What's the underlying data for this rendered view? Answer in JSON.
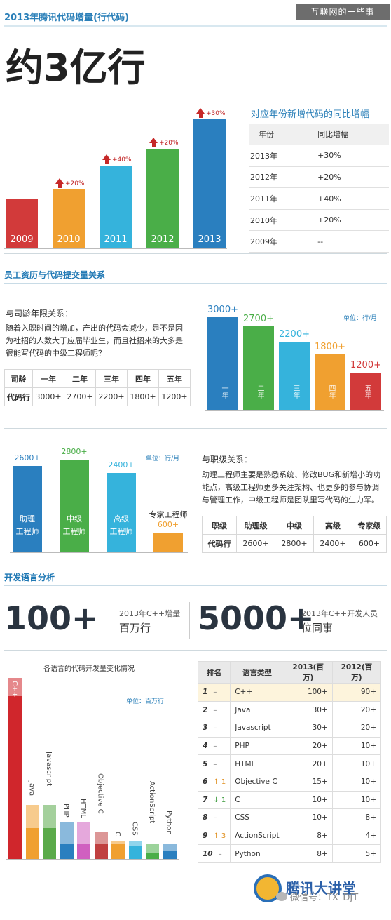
{
  "watermark": "互联网的一些事",
  "header": {
    "title": "2013年腾讯代码增量(行代码)",
    "headline": "约3亿行"
  },
  "growth": {
    "years": [
      "2009",
      "2010",
      "2011",
      "2012",
      "2013"
    ],
    "rates": [
      "",
      "+20%",
      "+40%",
      "+20%",
      "+30%"
    ],
    "colors": [
      "#d23a3a",
      "#f0a030",
      "#35b3dc",
      "#4aae48",
      "#2a7fbf"
    ],
    "table": {
      "title": "对应年份新增代码的同比增幅",
      "col_year": "年份",
      "col_rate": "同比增幅",
      "rows": [
        [
          "2013年",
          "+30%"
        ],
        [
          "2012年",
          "+20%"
        ],
        [
          "2011年",
          "+40%"
        ],
        [
          "2010年",
          "+20%"
        ],
        [
          "2009年",
          "--"
        ]
      ]
    }
  },
  "seniority": {
    "section_title": "员工资历与代码提交量关系",
    "subtitle": "与司龄年限关系：",
    "desc": "随着入职时间的增加，产出的代码会减少，是不是因为社招的人数大于应届毕业生，而且社招来的大多是很能写代码的中级工程师呢？",
    "unit": "单位：行/月",
    "table_head": [
      "司龄",
      "一年",
      "二年",
      "三年",
      "四年",
      "五年"
    ],
    "table_row": [
      "代码行",
      "3000+",
      "2700+",
      "2200+",
      "1800+",
      "1200+"
    ],
    "bars": [
      {
        "label": "3000+",
        "name": "一年",
        "value": 3000,
        "color": "#2a7fbf"
      },
      {
        "label": "2700+",
        "name": "二年",
        "value": 2700,
        "color": "#4aae48"
      },
      {
        "label": "2200+",
        "name": "三年",
        "value": 2200,
        "color": "#35b3dc"
      },
      {
        "label": "1800+",
        "name": "四年",
        "value": 1800,
        "color": "#f0a030"
      },
      {
        "label": "1200+",
        "name": "五年",
        "value": 1200,
        "color": "#d23a3a"
      }
    ]
  },
  "rank": {
    "subtitle": "与职级关系：",
    "desc": "助理工程师主要是熟悉系统、修改BUG和新增小的功能点，高级工程师更多关注架构、也更多的参与协调与管理工作，中级工程师是团队里写代码的生力军。",
    "unit": "单位：行/月",
    "table_head": [
      "职级",
      "助理级",
      "中级",
      "高级",
      "专家级"
    ],
    "table_row": [
      "代码行",
      "2600+",
      "2800+",
      "2400+",
      "600+"
    ],
    "bars": [
      {
        "label": "2600+",
        "name1": "助理",
        "name2": "工程师",
        "value": 2600,
        "color": "#2a7fbf"
      },
      {
        "label": "2800+",
        "name1": "中级",
        "name2": "工程师",
        "value": 2800,
        "color": "#4aae48"
      },
      {
        "label": "2400+",
        "name1": "高级",
        "name2": "工程师",
        "value": 2400,
        "color": "#35b3dc"
      },
      {
        "label": "600+",
        "name1": "专家工程师",
        "name2": "",
        "value": 600,
        "color": "#f0a030"
      }
    ]
  },
  "lang": {
    "section_title": "开发语言分析",
    "stat1_num": "100+",
    "stat1_a": "2013年C++增量",
    "stat1_b": "百万行",
    "stat2_num": "5000+",
    "stat2_a": "2013年C++开发人员",
    "stat2_b": "位同事",
    "chart_title": "各语言的代码开发量变化情况",
    "unit": "单位：百万行",
    "table_head": [
      "排名",
      "语言类型",
      "2013(百万)",
      "2012(百万)"
    ],
    "rows": [
      {
        "rank": "1",
        "chg": "–",
        "dir": "",
        "lang": "C++",
        "v2013": "100+",
        "v2012": "90+"
      },
      {
        "rank": "2",
        "chg": "–",
        "dir": "",
        "lang": "Java",
        "v2013": "30+",
        "v2012": "20+"
      },
      {
        "rank": "3",
        "chg": "–",
        "dir": "",
        "lang": "Javascript",
        "v2013": "30+",
        "v2012": "20+"
      },
      {
        "rank": "4",
        "chg": "–",
        "dir": "",
        "lang": "PHP",
        "v2013": "20+",
        "v2012": "10+"
      },
      {
        "rank": "5",
        "chg": "–",
        "dir": "",
        "lang": "HTML",
        "v2013": "20+",
        "v2012": "10+"
      },
      {
        "rank": "6",
        "chg": "↑ 1",
        "dir": "up",
        "lang": "Objective C",
        "v2013": "15+",
        "v2012": "10+"
      },
      {
        "rank": "7",
        "chg": "↓ 1",
        "dir": "down",
        "lang": "C",
        "v2013": "10+",
        "v2012": "10+"
      },
      {
        "rank": "8",
        "chg": "–",
        "dir": "",
        "lang": "CSS",
        "v2013": "10+",
        "v2012": "8+"
      },
      {
        "rank": "9",
        "chg": "↑ 3",
        "dir": "up",
        "lang": "ActionScript",
        "v2013": "8+",
        "v2012": "4+"
      },
      {
        "rank": "10",
        "chg": "–",
        "dir": "",
        "lang": "Python",
        "v2013": "8+",
        "v2012": "5+"
      }
    ]
  },
  "footer": {
    "logo": "腾讯大讲堂",
    "wechat": "微信号：TX_DJT"
  },
  "chart_data": [
    {
      "type": "bar",
      "categories": [
        "2009",
        "2010",
        "2011",
        "2012",
        "2013"
      ],
      "values": [
        100,
        120,
        168,
        201.6,
        262.1
      ],
      "annotations": [
        "",
        "+20%",
        "+40%",
        "+20%",
        "+30%"
      ]
    },
    {
      "type": "bar",
      "categories": [
        "一年",
        "二年",
        "三年",
        "四年",
        "五年"
      ],
      "values": [
        3000,
        2700,
        2200,
        1800,
        1200
      ],
      "ylabel": "单位：行/月"
    },
    {
      "type": "bar",
      "categories": [
        "助理工程师",
        "中级工程师",
        "高级工程师",
        "专家工程师"
      ],
      "values": [
        2600,
        2800,
        2400,
        600
      ],
      "ylabel": "单位：行/月"
    },
    {
      "type": "bar",
      "title": "各语言的代码开发量变化情况",
      "ylabel": "单位：百万行",
      "categories": [
        "C++",
        "Java",
        "Javascript",
        "PHP",
        "HTML",
        "Objective C",
        "C",
        "CSS",
        "ActionScript",
        "Python"
      ],
      "series": [
        {
          "name": "2013(百万)",
          "values": [
            100,
            30,
            30,
            20,
            20,
            15,
            10,
            10,
            8,
            8
          ]
        },
        {
          "name": "2012(百万)",
          "values": [
            90,
            20,
            20,
            10,
            10,
            10,
            10,
            8,
            4,
            5
          ]
        }
      ]
    }
  ]
}
